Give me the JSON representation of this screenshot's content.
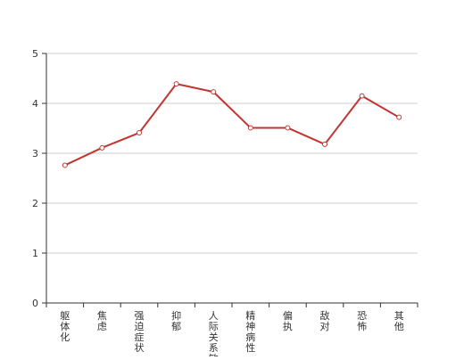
{
  "chart_data": {
    "type": "line",
    "title": "",
    "xlabel": "",
    "ylabel": "",
    "categories": [
      "躯体化",
      "焦虑",
      "强迫症状",
      "抑郁",
      "人际关系敏感",
      "精神病性",
      "偏执",
      "敌对",
      "恐怖",
      "其他"
    ],
    "series": [
      {
        "values": [
          2.76,
          3.11,
          3.41,
          4.39,
          4.23,
          3.51,
          3.51,
          3.18,
          4.15,
          3.72
        ]
      }
    ],
    "yticks": [
      0,
      1,
      2,
      3,
      4,
      5
    ],
    "ylim": [
      0,
      5
    ],
    "grid": true,
    "legend": "none",
    "colors": {
      "line": "#c23531",
      "marker_fill": "#ffffff",
      "axis": "#333333",
      "grid": "#cccccc",
      "text": "#333333"
    }
  }
}
